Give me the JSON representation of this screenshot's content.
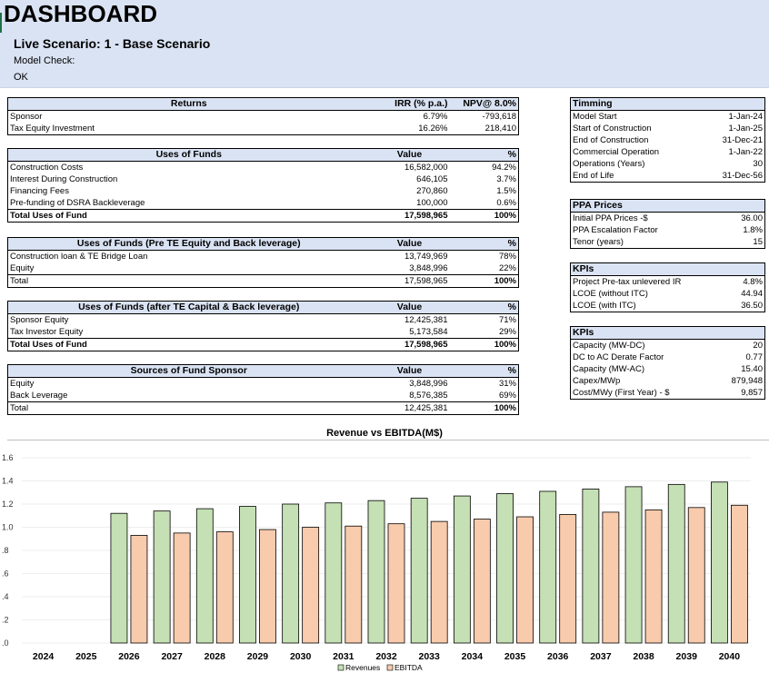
{
  "header": {
    "title": "DASHBOARD",
    "scenario": "Live Scenario: 1 - Base Scenario",
    "model_check_label": "Model Check:",
    "model_check_value": "OK"
  },
  "returns": {
    "headers": [
      "Returns",
      "IRR (% p.a.)",
      "NPV@ 8.0%"
    ],
    "rows": [
      [
        "Sponsor",
        "6.79%",
        "-793,618"
      ],
      [
        "Tax Equity Investment",
        "16.26%",
        "218,410"
      ]
    ]
  },
  "uses_of_funds": {
    "headers": [
      "Uses of Funds",
      "Value",
      "%"
    ],
    "rows": [
      [
        "Construction Costs",
        "16,582,000",
        "94.2%"
      ],
      [
        "Interest During Construction",
        "646,105",
        "3.7%"
      ],
      [
        "Financing Fees",
        "270,860",
        "1.5%"
      ],
      [
        "Pre-funding of DSRA Backleverage",
        "100,000",
        "0.6%"
      ]
    ],
    "total": [
      "Total Uses of Fund",
      "17,598,965",
      "100%"
    ]
  },
  "uses_pre_te": {
    "headers": [
      "Uses of Funds (Pre TE Equity and Back leverage)",
      "Value",
      "%"
    ],
    "rows": [
      [
        "Construction loan & TE Bridge Loan",
        "13,749,969",
        "78%"
      ],
      [
        "Equity",
        "3,848,996",
        "22%"
      ]
    ],
    "total": [
      "Total",
      "17,598,965",
      "100%"
    ]
  },
  "uses_after_te": {
    "headers": [
      "Uses of Funds (after TE Capital & Back leverage)",
      "Value",
      "%"
    ],
    "rows": [
      [
        "Sponsor Equity",
        "12,425,381",
        "71%"
      ],
      [
        "Tax Investor Equity",
        "5,173,584",
        "29%"
      ]
    ],
    "total": [
      "Total Uses of Fund",
      "17,598,965",
      "100%"
    ]
  },
  "sources_sponsor": {
    "headers": [
      "Sources of Fund Sponsor",
      "Value",
      "%"
    ],
    "rows": [
      [
        "Equity",
        "3,848,996",
        "31%"
      ],
      [
        "Back Leverage",
        "8,576,385",
        "69%"
      ]
    ],
    "total": [
      "Total",
      "12,425,381",
      "100%"
    ]
  },
  "timming": {
    "header": "Timming",
    "rows": [
      [
        "Model Start",
        "1-Jan-24"
      ],
      [
        "Start of Construction",
        "1-Jan-25"
      ],
      [
        "End of Construction",
        "31-Dec-21"
      ],
      [
        "Commercial Operation",
        "1-Jan-22"
      ],
      [
        "Operations (Years)",
        "30"
      ],
      [
        "End of Life",
        "31-Dec-56"
      ]
    ]
  },
  "ppa_prices": {
    "header": "PPA Prices",
    "rows": [
      [
        "Initial PPA Prices -$",
        "36.00"
      ],
      [
        "PPA Escalation Factor",
        "1.8%"
      ],
      [
        "Tenor (years)",
        "15"
      ]
    ]
  },
  "kpis_1": {
    "header": "KPIs",
    "rows": [
      [
        "Project Pre-tax unlevered IR",
        "4.8%"
      ],
      [
        "LCOE (without ITC)",
        "44.94"
      ],
      [
        "LCOE (with ITC)",
        "36.50"
      ]
    ]
  },
  "kpis_2": {
    "header": "KPIs",
    "rows": [
      [
        "Capacity (MW-DC)",
        "20"
      ],
      [
        "DC to AC Derate Factor",
        "0.77"
      ],
      [
        "Capacity (MW-AC)",
        "15.40"
      ],
      [
        "Capex/MWp",
        "879,948"
      ],
      [
        "Cost/MWy (First Year) - $",
        "9,857"
      ]
    ]
  },
  "chart_data": {
    "type": "bar",
    "title": "Revenue vs EBITDA(M$)",
    "categories": [
      "2024",
      "2025",
      "2026",
      "2027",
      "2028",
      "2029",
      "2030",
      "2031",
      "2032",
      "2033",
      "2034",
      "2035",
      "2036",
      "2037",
      "2038",
      "2039",
      "2040"
    ],
    "series": [
      {
        "name": "Revenues",
        "color": "#c5e0b4",
        "values": [
          0,
          0,
          1.12,
          1.14,
          1.16,
          1.18,
          1.2,
          1.21,
          1.23,
          1.25,
          1.27,
          1.29,
          1.31,
          1.33,
          1.35,
          1.37,
          1.39
        ]
      },
      {
        "name": "EBITDA",
        "color": "#f8cbad",
        "values": [
          0,
          0,
          0.93,
          0.95,
          0.96,
          0.98,
          1.0,
          1.01,
          1.03,
          1.05,
          1.07,
          1.09,
          1.11,
          1.13,
          1.15,
          1.17,
          1.19
        ]
      }
    ],
    "ylim": [
      0,
      1.6
    ],
    "yticks": [
      "0",
      "0.2",
      "0.4",
      "0.6",
      "0.8",
      "1.0",
      "1.2",
      "1.4",
      "1.6"
    ],
    "ytick_labels": [
      ".0",
      ".2",
      ".4",
      ".6",
      ".8",
      "1.0",
      "1.2",
      "1.4",
      "1.6"
    ],
    "grid": true,
    "legend": "bottom"
  }
}
